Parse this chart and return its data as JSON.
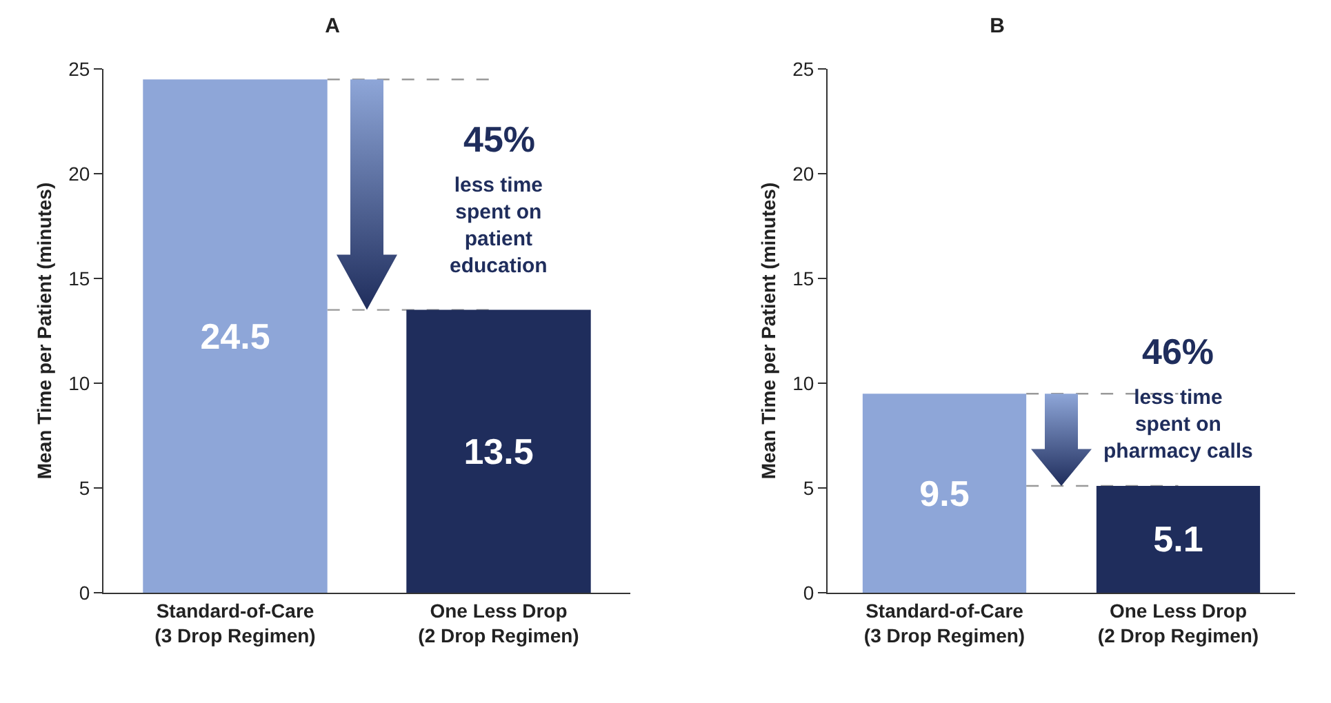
{
  "chart_data": [
    {
      "type": "bar",
      "title": "A",
      "ylabel": "Mean Time per Patient (minutes)",
      "categories": [
        "Standard-of-Care (3 Drop Regimen)",
        "One Less Drop (2 Drop Regimen)"
      ],
      "values": [
        24.5,
        13.5
      ],
      "colors": [
        "#8ea6d8",
        "#1f2d5c"
      ],
      "ylim": [
        0,
        25
      ],
      "yticks": [
        0,
        5,
        10,
        15,
        20,
        25
      ],
      "grid": false,
      "data_labels": true,
      "ref_lines": [
        {
          "axis": "y",
          "value": 24.5,
          "color": "#999999",
          "line_style": "dashed"
        },
        {
          "axis": "y",
          "value": 13.5,
          "color": "#999999",
          "line_style": "dashed"
        }
      ],
      "annotations": [
        "45%",
        "less time spent on patient education"
      ]
    },
    {
      "type": "bar",
      "title": "B",
      "ylabel": "Mean Time per Patient (minutes)",
      "categories": [
        "Standard-of-Care (3 Drop Regimen)",
        "One Less Drop (2 Drop Regimen)"
      ],
      "values": [
        9.5,
        5.1
      ],
      "colors": [
        "#8ea6d8",
        "#1f2d5c"
      ],
      "ylim": [
        0,
        25
      ],
      "yticks": [
        0,
        5,
        10,
        15,
        20,
        25
      ],
      "grid": false,
      "data_labels": true,
      "ref_lines": [
        {
          "axis": "y",
          "value": 9.5,
          "color": "#999999",
          "line_style": "dashed"
        },
        {
          "axis": "y",
          "value": 5.1,
          "color": "#999999",
          "line_style": "dashed"
        }
      ],
      "annotations": [
        "46%",
        "less time spent on pharmacy calls"
      ]
    }
  ]
}
